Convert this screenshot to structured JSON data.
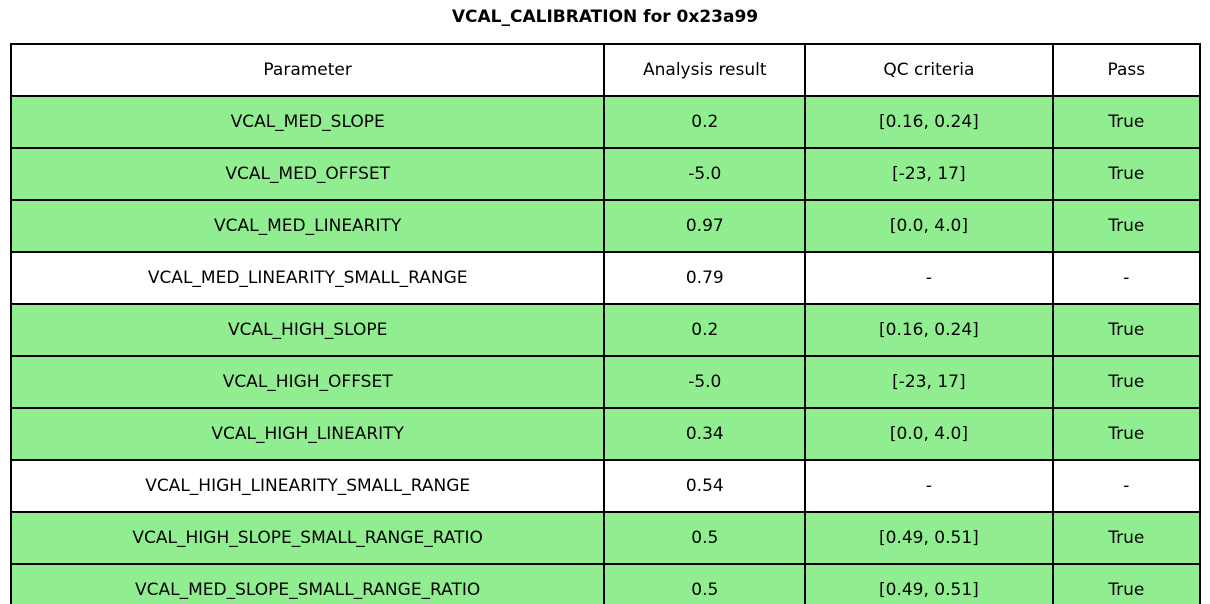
{
  "title": "VCAL_CALIBRATION for 0x23a99",
  "colors": {
    "pass_row_bg": "#90ee90",
    "neutral_row_bg": "#ffffff",
    "border": "#000000",
    "text": "#000000"
  },
  "table": {
    "headers": [
      "Parameter",
      "Analysis result",
      "QC criteria",
      "Pass"
    ],
    "rows": [
      {
        "parameter": "VCAL_MED_SLOPE",
        "result": "0.2",
        "criteria": "[0.16, 0.24]",
        "pass": "True",
        "highlight": true
      },
      {
        "parameter": "VCAL_MED_OFFSET",
        "result": "-5.0",
        "criteria": "[-23, 17]",
        "pass": "True",
        "highlight": true
      },
      {
        "parameter": "VCAL_MED_LINEARITY",
        "result": "0.97",
        "criteria": "[0.0, 4.0]",
        "pass": "True",
        "highlight": true
      },
      {
        "parameter": "VCAL_MED_LINEARITY_SMALL_RANGE",
        "result": "0.79",
        "criteria": "-",
        "pass": "-",
        "highlight": false
      },
      {
        "parameter": "VCAL_HIGH_SLOPE",
        "result": "0.2",
        "criteria": "[0.16, 0.24]",
        "pass": "True",
        "highlight": true
      },
      {
        "parameter": "VCAL_HIGH_OFFSET",
        "result": "-5.0",
        "criteria": "[-23, 17]",
        "pass": "True",
        "highlight": true
      },
      {
        "parameter": "VCAL_HIGH_LINEARITY",
        "result": "0.34",
        "criteria": "[0.0, 4.0]",
        "pass": "True",
        "highlight": true
      },
      {
        "parameter": "VCAL_HIGH_LINEARITY_SMALL_RANGE",
        "result": "0.54",
        "criteria": "-",
        "pass": "-",
        "highlight": false
      },
      {
        "parameter": "VCAL_HIGH_SLOPE_SMALL_RANGE_RATIO",
        "result": "0.5",
        "criteria": "[0.49, 0.51]",
        "pass": "True",
        "highlight": true
      },
      {
        "parameter": "VCAL_MED_SLOPE_SMALL_RANGE_RATIO",
        "result": "0.5",
        "criteria": "[0.49, 0.51]",
        "pass": "True",
        "highlight": true
      }
    ]
  }
}
